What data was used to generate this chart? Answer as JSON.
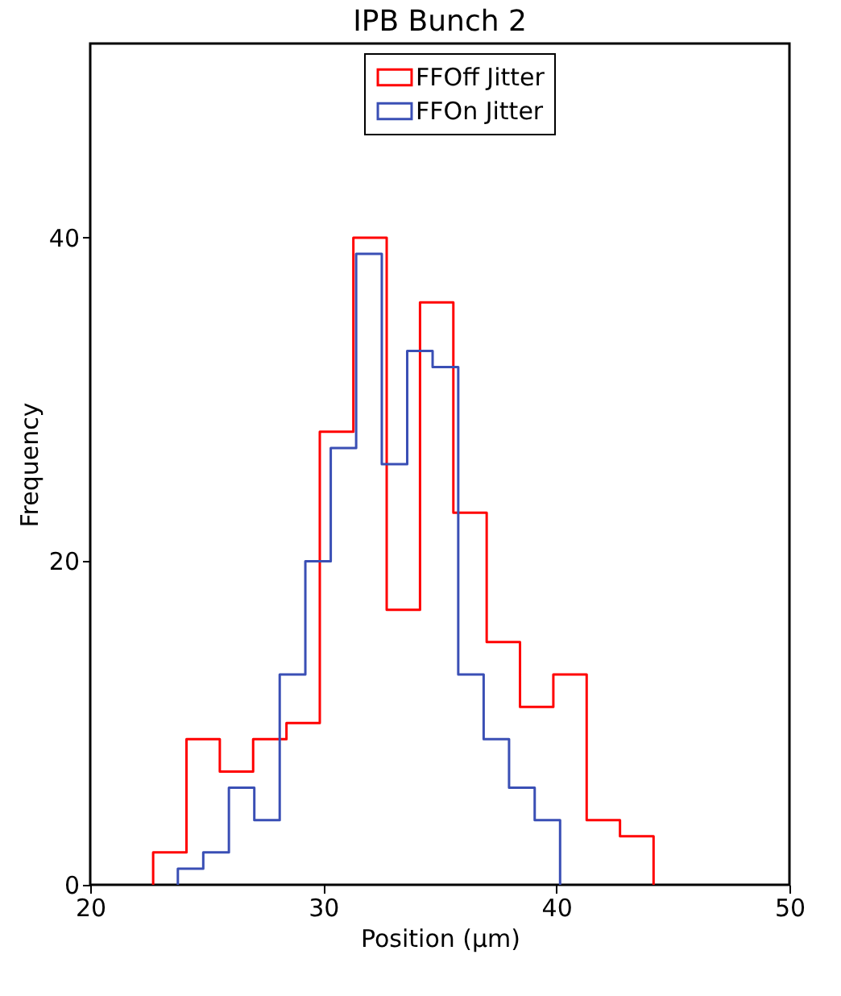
{
  "chart_data": {
    "type": "step",
    "title": "IPB Bunch 2",
    "xlabel": "Position (μm)",
    "ylabel": "Frequency",
    "xlim": [
      20,
      50
    ],
    "xticks": [
      20,
      30,
      40,
      50
    ],
    "ylim": [
      0,
      52
    ],
    "yticks": [
      0,
      20,
      40
    ],
    "grid": false,
    "legend": "top",
    "series": [
      {
        "name": "FFOff Jitter",
        "color": "#ff0000",
        "x": [
          22.7,
          22.7,
          24.13,
          25.56,
          26.99,
          28.42,
          29.85,
          31.29,
          32.72,
          34.15,
          35.58,
          37.01,
          38.44,
          39.87,
          41.3,
          42.73,
          44.17
        ],
        "values": [
          0,
          2,
          9,
          7,
          9,
          10,
          28,
          40,
          17,
          36,
          23,
          15,
          11,
          13,
          4,
          3,
          0
        ]
      },
      {
        "name": "FFOn Jitter",
        "color": "#3a4fb5",
        "x": [
          23.76,
          23.76,
          24.85,
          25.95,
          27.04,
          28.13,
          29.23,
          30.32,
          31.41,
          32.51,
          33.6,
          34.69,
          35.79,
          36.88,
          37.97,
          39.07,
          40.16
        ],
        "values": [
          0,
          1,
          2,
          6,
          4,
          13,
          20,
          27,
          39,
          26,
          33,
          32,
          13,
          9,
          6,
          4,
          0
        ]
      }
    ]
  }
}
